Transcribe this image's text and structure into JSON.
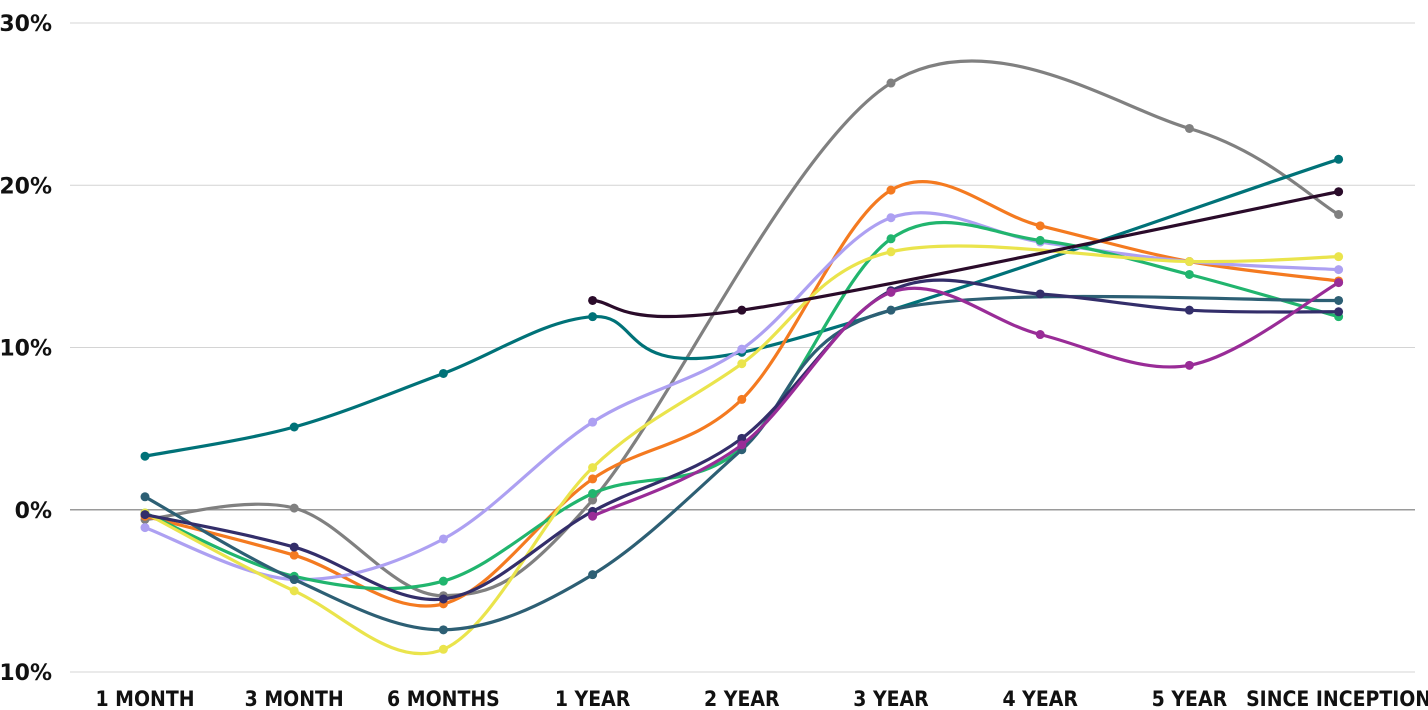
{
  "chart_data": {
    "type": "line",
    "categories": [
      "1 MONTH",
      "3 MONTH",
      "6 MONTHS",
      "1 YEAR",
      "2 YEAR",
      "3 YEAR",
      "4 YEAR",
      "5 YEAR",
      "SINCE INCEPTION"
    ],
    "y_ticks": [
      "-10%",
      "0%",
      "10%",
      "20%",
      "30%"
    ],
    "y_tick_values": [
      -10,
      0,
      10,
      20,
      30
    ],
    "ylim": [
      -10,
      30
    ],
    "y_unit": "%",
    "grid": true,
    "legend": "none",
    "series": [
      {
        "color": "#808080",
        "values": [
          -0.6,
          0.1,
          -5.3,
          0.6,
          null,
          26.3,
          null,
          23.5,
          18.2
        ]
      },
      {
        "color": "#007278",
        "values": [
          3.3,
          5.1,
          8.4,
          11.9,
          9.7,
          null,
          null,
          null,
          21.6
        ]
      },
      {
        "color": "#F47A20",
        "values": [
          -0.4,
          -2.8,
          -5.8,
          1.9,
          6.8,
          19.7,
          17.5,
          15.3,
          14.1
        ]
      },
      {
        "color": "#ADA0F2",
        "values": [
          -1.1,
          -4.3,
          -1.8,
          5.4,
          9.9,
          18.0,
          16.5,
          15.3,
          14.8
        ]
      },
      {
        "color": "#21B56E",
        "values": [
          -0.2,
          -4.1,
          -4.4,
          1.0,
          3.8,
          16.7,
          16.6,
          14.5,
          11.9
        ]
      },
      {
        "color": "#EAE44C",
        "values": [
          -0.2,
          -5.0,
          -8.6,
          2.6,
          9.0,
          15.9,
          null,
          15.3,
          15.6
        ]
      },
      {
        "color": "#2D5F74",
        "values": [
          0.8,
          -4.3,
          -7.4,
          -4.0,
          3.7,
          12.3,
          null,
          null,
          12.9
        ]
      },
      {
        "color": "#332E6A",
        "values": [
          -0.3,
          -2.3,
          -5.5,
          -0.1,
          4.4,
          13.5,
          13.3,
          12.3,
          12.2
        ]
      },
      {
        "color": "#992C97",
        "values": [
          null,
          null,
          null,
          -0.4,
          4.0,
          13.4,
          10.8,
          8.9,
          14.0
        ]
      },
      {
        "color": "#2A0B2A",
        "values": [
          null,
          null,
          null,
          12.9,
          12.3,
          null,
          null,
          null,
          19.6
        ]
      }
    ]
  }
}
